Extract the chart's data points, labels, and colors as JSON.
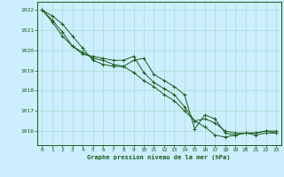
{
  "title": "Graphe pression niveau de la mer (hPa)",
  "background_color": "#cceeff",
  "grid_color": "#aaddcc",
  "line_color": "#1a5c1a",
  "marker_color": "#1a5c1a",
  "xlim": [
    -0.5,
    23.5
  ],
  "ylim": [
    1015.3,
    1022.4
  ],
  "yticks": [
    1016,
    1017,
    1018,
    1019,
    1020,
    1021,
    1022
  ],
  "xticks": [
    0,
    1,
    2,
    3,
    4,
    5,
    6,
    7,
    8,
    9,
    10,
    11,
    12,
    13,
    14,
    15,
    16,
    17,
    18,
    19,
    20,
    21,
    22,
    23
  ],
  "series": [
    [
      1022.0,
      1021.7,
      1021.3,
      1020.7,
      1020.1,
      1019.5,
      1019.3,
      1019.2,
      1019.2,
      1019.5,
      1019.6,
      1018.8,
      1018.5,
      1018.2,
      1017.8,
      1016.1,
      1016.8,
      1016.6,
      1015.9,
      1015.8,
      1015.9,
      1015.8,
      1015.9,
      1015.9
    ],
    [
      1022.0,
      1021.5,
      1020.9,
      1020.2,
      1019.8,
      1019.7,
      1019.6,
      1019.5,
      1019.5,
      1019.7,
      1018.9,
      1018.4,
      1018.1,
      1017.8,
      1017.2,
      1016.5,
      1016.6,
      1016.4,
      1016.0,
      1015.9,
      1015.9,
      1015.9,
      1016.0,
      1015.9
    ],
    [
      1022.0,
      1021.4,
      1020.7,
      1020.2,
      1019.9,
      1019.6,
      1019.5,
      1019.3,
      1019.2,
      1018.9,
      1018.5,
      1018.2,
      1017.8,
      1017.5,
      1017.0,
      1016.5,
      1016.2,
      1015.8,
      1015.7,
      1015.8,
      1015.9,
      1015.9,
      1016.0,
      1016.0
    ]
  ]
}
